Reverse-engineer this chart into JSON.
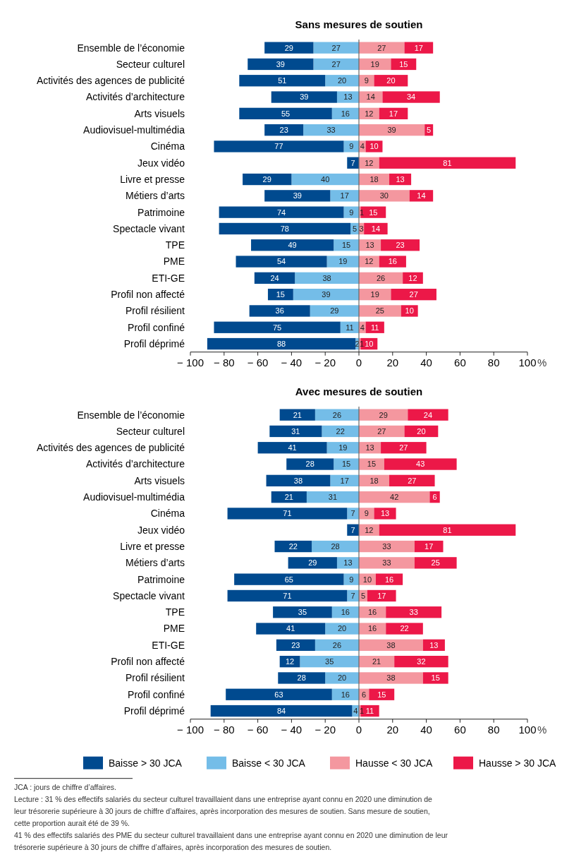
{
  "chart_data": [
    {
      "type": "bar",
      "title": "Sans mesures de soutien",
      "orientation": "horizontal",
      "legend": false,
      "categories": [
        "Ensemble de l’économie",
        "Secteur culturel",
        "Activités des agences de publicité",
        "Activités d’architecture",
        "Arts visuels",
        "Audiovisuel-multimédia",
        "Cinéma",
        "Jeux vidéo",
        "Livre et presse",
        "Métiers d’arts",
        "Patrimoine",
        "Spectacle vivant",
        "TPE",
        "PME",
        "ETI-GE",
        "Profil non affecté",
        "Profil résilient",
        "Profil confiné",
        "Profil déprimé"
      ],
      "series": [
        {
          "color": "#74bde8",
          "values": [
            27,
            27,
            20,
            13,
            16,
            33,
            9,
            null,
            40,
            17,
            9,
            5,
            15,
            19,
            38,
            39,
            29,
            11,
            2
          ],
          "base": [
            -27,
            -27,
            -20,
            -13,
            -16,
            -33,
            -9,
            null,
            -40,
            -17,
            -9,
            -5,
            -15,
            -19,
            -38,
            -39,
            -29,
            -11,
            -2
          ]
        },
        {
          "color": "#004a8f",
          "values": [
            29,
            39,
            51,
            39,
            55,
            23,
            77,
            7,
            29,
            39,
            74,
            78,
            49,
            54,
            24,
            15,
            36,
            75,
            88
          ],
          "base": [
            -56,
            -66,
            -71,
            -52,
            -71,
            -56,
            -86,
            -7,
            -69,
            -56,
            -83,
            -83,
            -64,
            -73,
            -62,
            -54,
            -65,
            -86,
            -90
          ]
        },
        {
          "color": "#f4979f",
          "values": [
            27,
            19,
            9,
            14,
            12,
            39,
            4,
            12,
            18,
            30,
            1,
            3,
            13,
            12,
            26,
            19,
            25,
            4,
            1
          ],
          "base": [
            0,
            0,
            0,
            0,
            0,
            0,
            0,
            0,
            0,
            0,
            0,
            0,
            0,
            0,
            0,
            0,
            0,
            0,
            0
          ]
        },
        {
          "color": "#ec1848",
          "values": [
            17,
            15,
            20,
            34,
            17,
            5,
            10,
            81,
            13,
            14,
            15,
            14,
            23,
            16,
            12,
            27,
            10,
            11,
            10
          ],
          "base": [
            27,
            19,
            9,
            14,
            12,
            39,
            4,
            12,
            18,
            30,
            1,
            3,
            13,
            12,
            26,
            19,
            25,
            4,
            1
          ]
        }
      ],
      "data_labels": true,
      "ref_lines": [
        {
          "axis": "x",
          "value": 0,
          "color": "#666666"
        }
      ],
      "xlim": [
        -100,
        100
      ],
      "xticks": [
        {
          "value": -100,
          "label": "− 100"
        },
        {
          "value": -80,
          "label": "− 80"
        },
        {
          "value": -60,
          "label": "− 60"
        },
        {
          "value": -40,
          "label": "− 40"
        },
        {
          "value": -20,
          "label": "− 20"
        },
        0,
        20,
        40,
        60,
        80,
        100
      ],
      "xlabel": "%"
    },
    {
      "type": "bar",
      "title": "Avec mesures de soutien",
      "orientation": "horizontal",
      "legend": "bottom",
      "categories": [
        "Ensemble de l’économie",
        "Secteur culturel",
        "Activités des agences de publicité",
        "Activités d’architecture",
        "Arts visuels",
        "Audiovisuel-multimédia",
        "Cinéma",
        "Jeux vidéo",
        "Livre et presse",
        "Métiers d’arts",
        "Patrimoine",
        "Spectacle vivant",
        "TPE",
        "PME",
        "ETI-GE",
        "Profil non affecté",
        "Profil résilient",
        "Profil confiné",
        "Profil déprimé"
      ],
      "series": [
        {
          "name": "Baisse < 30 JCA",
          "color": "#74bde8",
          "values": [
            26,
            22,
            19,
            15,
            17,
            31,
            7,
            null,
            28,
            13,
            9,
            7,
            16,
            20,
            26,
            35,
            20,
            16,
            4
          ],
          "base": [
            -26,
            -22,
            -19,
            -15,
            -17,
            -31,
            -7,
            null,
            -28,
            -13,
            -9,
            -7,
            -16,
            -20,
            -26,
            -35,
            -20,
            -16,
            -4
          ]
        },
        {
          "name": "Baisse > 30 JCA",
          "color": "#004a8f",
          "values": [
            21,
            31,
            41,
            28,
            38,
            21,
            71,
            7,
            22,
            29,
            65,
            71,
            35,
            41,
            23,
            12,
            28,
            63,
            84
          ],
          "base": [
            -47,
            -53,
            -60,
            -43,
            -55,
            -52,
            -78,
            -7,
            -50,
            -42,
            -74,
            -78,
            -51,
            -61,
            -49,
            -47,
            -48,
            -79,
            -88
          ]
        },
        {
          "name": "Hausse < 30 JCA",
          "color": "#f4979f",
          "values": [
            29,
            27,
            13,
            15,
            18,
            42,
            9,
            12,
            33,
            33,
            10,
            5,
            16,
            16,
            38,
            21,
            38,
            6,
            1
          ],
          "base": [
            0,
            0,
            0,
            0,
            0,
            0,
            0,
            0,
            0,
            0,
            0,
            0,
            0,
            0,
            0,
            0,
            0,
            0,
            0
          ]
        },
        {
          "name": "Hausse > 30 JCA",
          "color": "#ec1848",
          "values": [
            24,
            20,
            27,
            43,
            27,
            6,
            13,
            81,
            17,
            25,
            16,
            17,
            33,
            22,
            13,
            32,
            15,
            15,
            11
          ],
          "base": [
            29,
            27,
            13,
            15,
            18,
            42,
            9,
            12,
            33,
            33,
            10,
            5,
            16,
            16,
            38,
            21,
            38,
            6,
            1
          ]
        }
      ],
      "data_labels": true,
      "ref_lines": [
        {
          "axis": "x",
          "value": 0,
          "color": "#666666"
        }
      ],
      "xlim": [
        -100,
        100
      ],
      "xticks": [
        {
          "value": -100,
          "label": "− 100"
        },
        {
          "value": -80,
          "label": "− 80"
        },
        {
          "value": -60,
          "label": "− 60"
        },
        {
          "value": -40,
          "label": "− 40"
        },
        {
          "value": -20,
          "label": "− 20"
        },
        0,
        20,
        40,
        60,
        80,
        100
      ],
      "xlabel": "%",
      "annotations": [
        "JCA : jours de chiffre d’affaires.",
        "Lecture : 31 % des effectifs salariés du secteur culturel travaillaient dans une entreprise ayant connu en 2020 une diminution de leur trésorerie supérieure à 30 jours de chiffre d’affaires, après incorporation des mesures de soutien. Sans mesure de soutien, cette proportion aurait été de 39 %.",
        "41 % des effectifs salariés des PME du secteur culturel travaillaient dans une entreprise ayant connu en 2020 une diminution de leur trésorerie supérieure à 30 jours de chiffre d’affaires, après incorporation des mesures de soutien."
      ]
    }
  ]
}
